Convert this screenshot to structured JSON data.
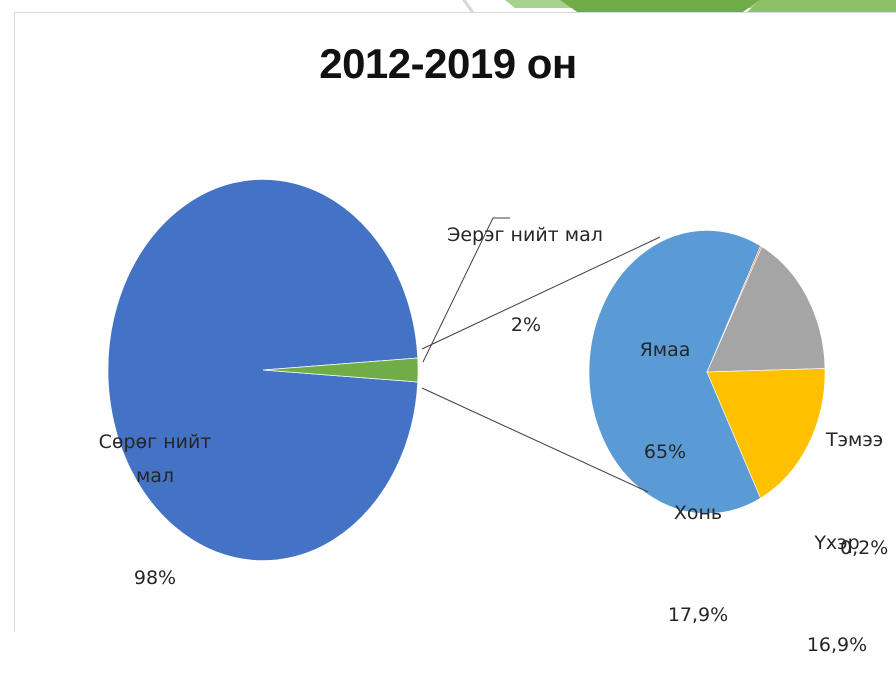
{
  "colors": {
    "main_pie_big": "#4472c4",
    "main_pie_small": "#70ad47",
    "sub_yamaa": "#5b9bd5",
    "sub_temee": "#ed7d31",
    "sub_ukher": "#a5a5a5",
    "sub_khon": "#ffc000",
    "decor_green_light": "#a9d18e",
    "decor_green_dark": "#70ad47"
  },
  "chart_data": {
    "type": "pie",
    "subtype": "pie-of-pie",
    "title": "2012-2019 он",
    "main_pie": {
      "slices": [
        {
          "name": "Сөрөг нийт мал",
          "value": 98,
          "label": "98%"
        },
        {
          "name": "Эерэг нийт мал",
          "value": 2,
          "label": "2%"
        }
      ]
    },
    "secondary_pie": {
      "expands": "Эерэг нийт мал",
      "slices": [
        {
          "name": "Ямаа",
          "value": 65,
          "label": "65%"
        },
        {
          "name": "Тэмээ",
          "value": 0.2,
          "label": "0,2%"
        },
        {
          "name": "Үхэр",
          "value": 16.9,
          "label": "16,9%"
        },
        {
          "name": "Хонь",
          "value": 17.9,
          "label": "17,9%"
        }
      ]
    },
    "legend": "none"
  }
}
